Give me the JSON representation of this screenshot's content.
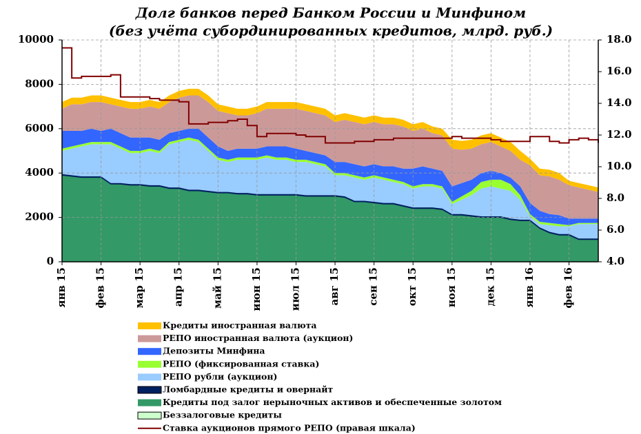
{
  "chart_data": {
    "type": "area",
    "title": "Долг банков перед Банком России и Минфином",
    "subtitle": "(без учёта субординированных кредитов, млрд. руб.)",
    "categories": [
      "янв 15",
      null,
      null,
      null,
      "фев 15",
      null,
      null,
      null,
      "мар 15",
      null,
      null,
      null,
      "апр 15",
      null,
      null,
      null,
      "май 15",
      null,
      null,
      null,
      "июн 15",
      null,
      null,
      null,
      "июл 15",
      null,
      null,
      null,
      "авг 15",
      null,
      null,
      null,
      "сен 15",
      null,
      null,
      null,
      "окт 15",
      null,
      null,
      null,
      "ноя 15",
      null,
      null,
      null,
      "дек 15",
      null,
      null,
      null,
      "янв 16",
      null,
      null,
      null,
      "фев 16",
      null,
      null,
      null
    ],
    "ylim": [
      0,
      10000
    ],
    "yticks": [
      0,
      2000,
      4000,
      6000,
      8000,
      10000
    ],
    "y2lim": [
      4,
      18
    ],
    "y2ticks": [
      {
        "value": 4,
        "label": "4.0"
      },
      {
        "value": 6,
        "label": "6.0"
      },
      {
        "value": 8,
        "label": "8.0"
      },
      {
        "value": 10,
        "label": "10.0"
      },
      {
        "value": 12,
        "label": "12.0"
      },
      {
        "value": 14,
        "label": "14.0"
      },
      {
        "value": 16,
        "label": "16.0"
      },
      {
        "value": 18,
        "label": "18.0"
      }
    ],
    "grid": true,
    "series": [
      {
        "name": "Беззалоговые  кредиты",
        "color": "#ccffcc",
        "values": [
          0,
          0,
          0,
          0,
          0,
          0,
          0,
          0,
          0,
          0,
          0,
          0,
          0,
          0,
          0,
          0,
          0,
          0,
          0,
          0,
          0,
          0,
          0,
          0,
          0,
          0,
          0,
          0,
          0,
          0,
          0,
          0,
          0,
          0,
          0,
          0,
          0,
          0,
          0,
          0,
          0,
          0,
          0,
          0,
          0,
          0,
          0,
          0,
          0,
          0,
          0,
          0,
          0,
          0,
          0,
          0
        ]
      },
      {
        "name": "Кредиты под залог  нерыночных  активов и обеспеченные золотом",
        "color": "#339966",
        "values": [
          3900,
          3850,
          3800,
          3800,
          3800,
          3500,
          3500,
          3450,
          3450,
          3400,
          3400,
          3300,
          3300,
          3200,
          3200,
          3150,
          3100,
          3100,
          3050,
          3050,
          3000,
          3000,
          3000,
          3000,
          3000,
          2950,
          2950,
          2950,
          2950,
          2900,
          2700,
          2700,
          2650,
          2600,
          2600,
          2500,
          2400,
          2400,
          2400,
          2350,
          2100,
          2100,
          2050,
          2000,
          2000,
          2000,
          1900,
          1850,
          1850,
          1500,
          1300,
          1200,
          1200,
          1000,
          1000,
          1000
        ]
      },
      {
        "name": "Ломбардные  кредиты и овернайт",
        "color": "#002060",
        "values": [
          50,
          50,
          50,
          50,
          50,
          50,
          50,
          50,
          50,
          50,
          50,
          50,
          50,
          50,
          50,
          50,
          50,
          50,
          50,
          50,
          50,
          50,
          50,
          50,
          50,
          50,
          50,
          50,
          50,
          50,
          50,
          50,
          50,
          50,
          50,
          50,
          50,
          50,
          50,
          50,
          50,
          50,
          50,
          50,
          50,
          50,
          50,
          50,
          50,
          50,
          50,
          50,
          50,
          50,
          50,
          50
        ]
      },
      {
        "name": "РЕПО рубли (аукцион)",
        "color": "#99ccff",
        "values": [
          1050,
          1200,
          1350,
          1450,
          1450,
          1750,
          1550,
          1400,
          1400,
          1550,
          1450,
          1950,
          2050,
          2250,
          2150,
          1800,
          1450,
          1350,
          1500,
          1500,
          1550,
          1650,
          1550,
          1550,
          1450,
          1500,
          1400,
          1300,
          900,
          950,
          1050,
          950,
          1100,
          1050,
          950,
          950,
          850,
          950,
          950,
          900,
          450,
          650,
          900,
          1250,
          1350,
          1250,
          1250,
          900,
          150,
          150,
          300,
          350,
          350,
          650,
          650,
          650
        ]
      },
      {
        "name": "РЕПО (фиксированная ставка)",
        "color": "#99ff33",
        "values": [
          100,
          100,
          100,
          100,
          100,
          100,
          100,
          100,
          100,
          100,
          100,
          100,
          100,
          100,
          100,
          100,
          100,
          100,
          100,
          100,
          100,
          100,
          100,
          100,
          100,
          100,
          100,
          100,
          100,
          100,
          100,
          100,
          100,
          100,
          100,
          100,
          100,
          100,
          100,
          100,
          100,
          150,
          200,
          300,
          300,
          400,
          300,
          200,
          100,
          100,
          100,
          100,
          50,
          50,
          50,
          50
        ]
      },
      {
        "name": "Депозиты Минфина",
        "color": "#3366ff",
        "values": [
          800,
          700,
          600,
          600,
          500,
          600,
          600,
          600,
          600,
          500,
          500,
          400,
          400,
          400,
          500,
          500,
          500,
          400,
          400,
          400,
          400,
          400,
          500,
          500,
          500,
          400,
          400,
          400,
          500,
          500,
          500,
          500,
          500,
          500,
          600,
          600,
          800,
          800,
          700,
          700,
          700,
          600,
          500,
          400,
          400,
          300,
          300,
          400,
          500,
          500,
          400,
          400,
          300,
          200,
          200,
          200
        ]
      },
      {
        "name": "РЕПО иностранная валюта (аукцион)",
        "color": "#cc9999",
        "values": [
          1000,
          1200,
          1200,
          1200,
          1300,
          1100,
          1200,
          1300,
          1300,
          1400,
          1400,
          1400,
          1500,
          1500,
          1500,
          1600,
          1600,
          1700,
          1500,
          1500,
          1600,
          1700,
          1700,
          1700,
          1800,
          1800,
          1800,
          1800,
          1800,
          1900,
          1900,
          1900,
          1900,
          1900,
          1900,
          1900,
          1700,
          1700,
          1600,
          1600,
          1700,
          1500,
          1400,
          1300,
          1300,
          1200,
          1200,
          1200,
          1700,
          1600,
          1700,
          1600,
          1500,
          1400,
          1300,
          1200
        ]
      },
      {
        "name": "Кредиты иностранная валюта",
        "color": "#ffc000",
        "values": [
          300,
          300,
          300,
          300,
          300,
          300,
          300,
          300,
          300,
          300,
          300,
          300,
          300,
          300,
          300,
          300,
          300,
          300,
          300,
          300,
          300,
          300,
          300,
          300,
          300,
          300,
          300,
          300,
          300,
          300,
          300,
          300,
          300,
          300,
          300,
          300,
          300,
          300,
          300,
          300,
          400,
          400,
          400,
          400,
          400,
          400,
          400,
          400,
          300,
          300,
          300,
          300,
          200,
          200,
          200,
          200
        ]
      },
      {
        "name": "Ставка аукционов  прямого РЕПО (правая шкала)",
        "color": "#800000",
        "type": "line",
        "axis": "y2",
        "values": [
          17.5,
          15.6,
          15.7,
          15.7,
          15.7,
          15.8,
          14.4,
          14.4,
          14.4,
          14.3,
          14.2,
          14.2,
          14.1,
          12.7,
          12.7,
          12.8,
          12.8,
          12.9,
          13.0,
          12.6,
          11.9,
          12.1,
          12.1,
          12.1,
          12.0,
          11.9,
          11.9,
          11.5,
          11.5,
          11.5,
          11.6,
          11.6,
          11.7,
          11.7,
          11.8,
          11.8,
          11.8,
          11.8,
          11.8,
          11.8,
          11.9,
          11.8,
          11.8,
          11.8,
          11.7,
          11.6,
          11.6,
          11.6,
          11.9,
          11.9,
          11.6,
          11.5,
          11.7,
          11.8,
          11.7,
          11.5
        ]
      }
    ]
  }
}
